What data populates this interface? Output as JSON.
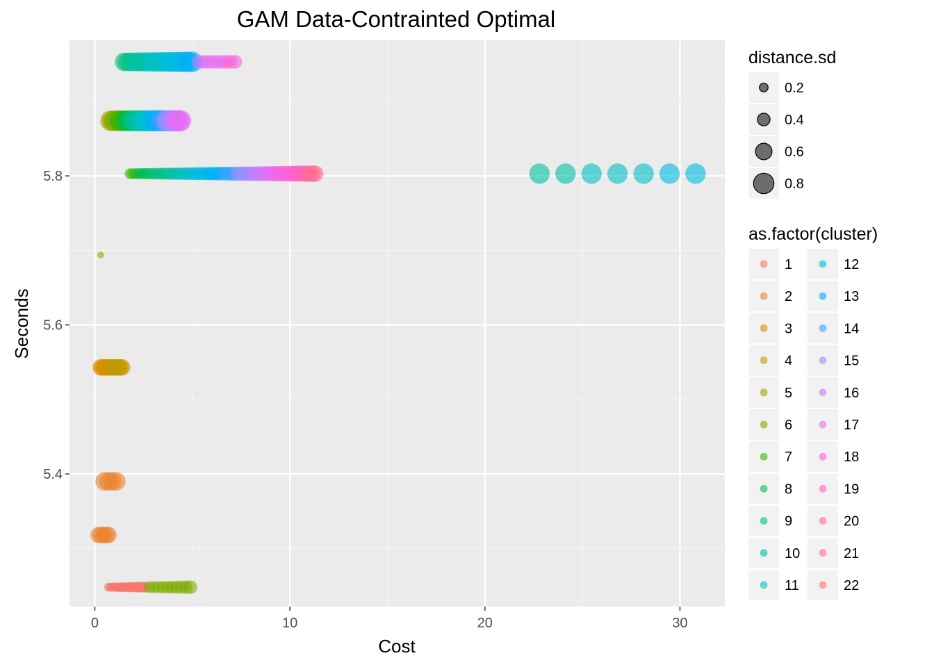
{
  "chart_data": {
    "type": "scatter",
    "title": "GAM Data-Contrainted Optimal",
    "xlabel": "Cost",
    "ylabel": "Seconds",
    "xlim": [
      -1.3,
      32.3
    ],
    "ylim": [
      5.222,
      5.982
    ],
    "x_ticks": [
      0,
      10,
      20,
      30
    ],
    "y_ticks": [
      5.4,
      5.6,
      5.8
    ],
    "grid": true,
    "size_legend": {
      "title": "distance.sd",
      "values": [
        "0.2",
        "0.4",
        "0.6",
        "0.8"
      ]
    },
    "color_legend": {
      "title": "as.factor(cluster)",
      "entries": [
        {
          "label": "1",
          "color": "#F8766D"
        },
        {
          "label": "2",
          "color": "#EA8331"
        },
        {
          "label": "3",
          "color": "#D89000"
        },
        {
          "label": "4",
          "color": "#C09B00"
        },
        {
          "label": "5",
          "color": "#A3A500"
        },
        {
          "label": "6",
          "color": "#7CAE00"
        },
        {
          "label": "7",
          "color": "#39B600"
        },
        {
          "label": "8",
          "color": "#00BB4E"
        },
        {
          "label": "9",
          "color": "#00BF7D"
        },
        {
          "label": "10",
          "color": "#00C1A3"
        },
        {
          "label": "11",
          "color": "#00BFC4"
        },
        {
          "label": "12",
          "color": "#00BAE0"
        },
        {
          "label": "13",
          "color": "#00B0F6"
        },
        {
          "label": "14",
          "color": "#35A2FF"
        },
        {
          "label": "15",
          "color": "#9590FF"
        },
        {
          "label": "16",
          "color": "#C77CFF"
        },
        {
          "label": "17",
          "color": "#E76BF3"
        },
        {
          "label": "18",
          "color": "#FA62DB"
        },
        {
          "label": "19",
          "color": "#FF62BC"
        },
        {
          "label": "20",
          "color": "#FF6C91"
        },
        {
          "label": "21",
          "color": "#FF6C91"
        },
        {
          "label": "22",
          "color": "#F8766D"
        }
      ]
    },
    "series": [
      {
        "y": 5.953,
        "x_start": 1.5,
        "x_end": 5.0,
        "n": 24,
        "sd_start": 0.7,
        "sd_end": 0.8,
        "cluster_start": 9,
        "cluster_end": 13
      },
      {
        "y": 5.953,
        "x_start": 5.3,
        "x_end": 7.2,
        "n": 9,
        "sd_start": 0.45,
        "sd_end": 0.45,
        "cluster_start": 16,
        "cluster_end": 18
      },
      {
        "y": 5.874,
        "x_start": 0.8,
        "x_end": 4.4,
        "n": 40,
        "sd_start": 0.8,
        "sd_end": 0.85,
        "cluster_start": 5,
        "cluster_end": 17
      },
      {
        "y": 5.803,
        "x_start": 1.8,
        "x_end": 11.3,
        "n": 70,
        "sd_start": 0.3,
        "sd_end": 0.6,
        "cluster_start": 7,
        "cluster_end": 20
      },
      {
        "y": 5.803,
        "x_start": 22.8,
        "x_end": 30.8,
        "n": 7,
        "sd_start": 0.8,
        "sd_end": 0.8,
        "cluster_start": 10,
        "cluster_end": 12
      },
      {
        "y": 5.694,
        "x_start": 0.3,
        "x_end": 0.3,
        "n": 1,
        "sd_start": 0.1,
        "sd_end": 0.1,
        "cluster_start": 5,
        "cluster_end": 5
      },
      {
        "y": 5.543,
        "x_start": 0.3,
        "x_end": 1.4,
        "n": 14,
        "sd_start": 0.6,
        "sd_end": 0.6,
        "cluster_start": 3,
        "cluster_end": 4
      },
      {
        "y": 5.39,
        "x_start": 0.5,
        "x_end": 1.1,
        "n": 4,
        "sd_start": 0.7,
        "sd_end": 0.7,
        "cluster_start": 2,
        "cluster_end": 2
      },
      {
        "y": 5.318,
        "x_start": 0.2,
        "x_end": 0.7,
        "n": 5,
        "sd_start": 0.6,
        "sd_end": 0.6,
        "cluster_start": 2,
        "cluster_end": 2
      },
      {
        "y": 5.248,
        "x_start": 0.7,
        "x_end": 2.6,
        "n": 22,
        "sd_start": 0.2,
        "sd_end": 0.3,
        "cluster_start": 1,
        "cluster_end": 1
      },
      {
        "y": 5.248,
        "x_start": 2.8,
        "x_end": 4.9,
        "n": 10,
        "sd_start": 0.35,
        "sd_end": 0.45,
        "cluster_start": 6,
        "cluster_end": 6
      }
    ]
  }
}
